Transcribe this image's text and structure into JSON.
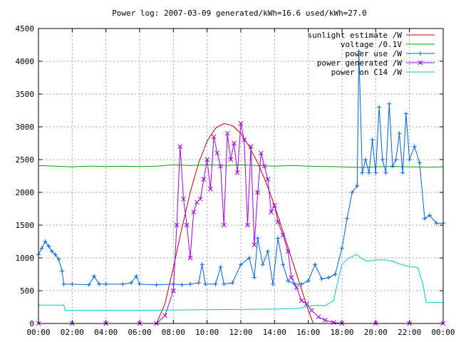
{
  "chart_data": {
    "type": "line",
    "title": "Power log: 2007-03-09 generated/kWh=16.6 used/kWh=27.0",
    "xlabel": "",
    "ylabel": "",
    "x_unit": "hours",
    "xlim": [
      0,
      24
    ],
    "ylim": [
      0,
      4500
    ],
    "grid": true,
    "legend_position": "top-right",
    "x_ticks": [
      {
        "value": 0,
        "label": "00:00"
      },
      {
        "value": 2,
        "label": "02:00"
      },
      {
        "value": 4,
        "label": "04:00"
      },
      {
        "value": 6,
        "label": "06:00"
      },
      {
        "value": 8,
        "label": "08:00"
      },
      {
        "value": 10,
        "label": "10:00"
      },
      {
        "value": 12,
        "label": "12:00"
      },
      {
        "value": 14,
        "label": "14:00"
      },
      {
        "value": 16,
        "label": "16:00"
      },
      {
        "value": 18,
        "label": "18:00"
      },
      {
        "value": 20,
        "label": "20:00"
      },
      {
        "value": 22,
        "label": "22:00"
      },
      {
        "value": 24,
        "label": "00:00"
      }
    ],
    "y_ticks": [
      {
        "value": 0,
        "label": "0"
      },
      {
        "value": 500,
        "label": "500"
      },
      {
        "value": 1000,
        "label": "1000"
      },
      {
        "value": 1500,
        "label": "1500"
      },
      {
        "value": 2000,
        "label": "2000"
      },
      {
        "value": 2500,
        "label": "2500"
      },
      {
        "value": 3000,
        "label": "3000"
      },
      {
        "value": 3500,
        "label": "3500"
      },
      {
        "value": 4000,
        "label": "4000"
      },
      {
        "value": 4500,
        "label": "4500"
      }
    ],
    "series": [
      {
        "name": "sunlight estimate /W",
        "color": "#c00000",
        "style": "line",
        "points": [
          [
            0,
            0
          ],
          [
            6.8,
            0
          ],
          [
            7.0,
            0
          ],
          [
            7.5,
            300
          ],
          [
            8.0,
            850
          ],
          [
            8.5,
            1450
          ],
          [
            9.0,
            2000
          ],
          [
            9.5,
            2450
          ],
          [
            10.0,
            2780
          ],
          [
            10.5,
            2980
          ],
          [
            11.0,
            3050
          ],
          [
            11.5,
            3020
          ],
          [
            12.0,
            2900
          ],
          [
            12.5,
            2700
          ],
          [
            13.0,
            2450
          ],
          [
            13.5,
            2150
          ],
          [
            14.0,
            1800
          ],
          [
            14.5,
            1400
          ],
          [
            15.0,
            1000
          ],
          [
            15.5,
            600
          ],
          [
            16.0,
            200
          ],
          [
            16.3,
            0
          ],
          [
            24,
            0
          ]
        ]
      },
      {
        "name": "voltage /0.1V",
        "color": "#00a000",
        "style": "line",
        "points": [
          [
            0,
            2410
          ],
          [
            1,
            2400
          ],
          [
            2,
            2390
          ],
          [
            3,
            2400
          ],
          [
            4,
            2395
          ],
          [
            5,
            2400
          ],
          [
            6,
            2395
          ],
          [
            7,
            2400
          ],
          [
            8,
            2420
          ],
          [
            9,
            2410
          ],
          [
            10,
            2420
          ],
          [
            11,
            2410
          ],
          [
            12,
            2420
          ],
          [
            13,
            2410
          ],
          [
            14,
            2400
          ],
          [
            15,
            2410
          ],
          [
            16,
            2400
          ],
          [
            17,
            2395
          ],
          [
            18,
            2390
          ],
          [
            19,
            2380
          ],
          [
            20,
            2390
          ],
          [
            21,
            2395
          ],
          [
            22,
            2390
          ],
          [
            23,
            2385
          ],
          [
            24,
            2390
          ]
        ]
      },
      {
        "name": "power use /W",
        "color": "#0060e0",
        "style": "linespoints-plus",
        "points": [
          [
            0,
            1050
          ],
          [
            0.2,
            1150
          ],
          [
            0.4,
            1250
          ],
          [
            0.6,
            1180
          ],
          [
            0.8,
            1100
          ],
          [
            1.0,
            1050
          ],
          [
            1.2,
            980
          ],
          [
            1.4,
            800
          ],
          [
            1.5,
            600
          ],
          [
            2,
            600
          ],
          [
            3,
            590
          ],
          [
            3.3,
            720
          ],
          [
            3.6,
            600
          ],
          [
            4,
            600
          ],
          [
            5,
            600
          ],
          [
            5.5,
            620
          ],
          [
            5.8,
            720
          ],
          [
            6.0,
            600
          ],
          [
            7,
            590
          ],
          [
            8,
            600
          ],
          [
            8.5,
            590
          ],
          [
            9,
            600
          ],
          [
            9.5,
            620
          ],
          [
            9.7,
            900
          ],
          [
            9.9,
            600
          ],
          [
            10.5,
            600
          ],
          [
            10.8,
            860
          ],
          [
            11.0,
            600
          ],
          [
            11.5,
            620
          ],
          [
            12.0,
            900
          ],
          [
            12.5,
            1000
          ],
          [
            12.8,
            700
          ],
          [
            13.0,
            1300
          ],
          [
            13.3,
            900
          ],
          [
            13.6,
            1100
          ],
          [
            13.9,
            600
          ],
          [
            14.2,
            1300
          ],
          [
            14.5,
            900
          ],
          [
            14.8,
            650
          ],
          [
            15.2,
            600
          ],
          [
            15.6,
            600
          ],
          [
            16.0,
            650
          ],
          [
            16.4,
            900
          ],
          [
            16.8,
            680
          ],
          [
            17.2,
            700
          ],
          [
            17.6,
            750
          ],
          [
            18.0,
            1150
          ],
          [
            18.3,
            1600
          ],
          [
            18.6,
            2000
          ],
          [
            18.9,
            2100
          ],
          [
            19.0,
            4150
          ],
          [
            19.2,
            2300
          ],
          [
            19.4,
            2500
          ],
          [
            19.6,
            2300
          ],
          [
            19.8,
            2800
          ],
          [
            20.0,
            2300
          ],
          [
            20.2,
            3300
          ],
          [
            20.4,
            2500
          ],
          [
            20.6,
            2300
          ],
          [
            20.8,
            3350
          ],
          [
            21.0,
            2400
          ],
          [
            21.2,
            2500
          ],
          [
            21.4,
            2900
          ],
          [
            21.6,
            2300
          ],
          [
            21.8,
            3200
          ],
          [
            22.0,
            2500
          ],
          [
            22.3,
            2700
          ],
          [
            22.6,
            2450
          ],
          [
            22.9,
            1600
          ],
          [
            23.2,
            1650
          ],
          [
            23.6,
            1530
          ],
          [
            24,
            1530
          ]
        ]
      },
      {
        "name": "power generated /W",
        "color": "#a000e0",
        "style": "linespoints-cross",
        "points": [
          [
            0,
            0
          ],
          [
            2,
            0
          ],
          [
            4,
            0
          ],
          [
            6,
            0
          ],
          [
            7.0,
            0
          ],
          [
            7.5,
            120
          ],
          [
            8.0,
            500
          ],
          [
            8.2,
            1500
          ],
          [
            8.4,
            2700
          ],
          [
            8.6,
            1900
          ],
          [
            8.8,
            1500
          ],
          [
            9.0,
            1000
          ],
          [
            9.2,
            1700
          ],
          [
            9.4,
            1850
          ],
          [
            9.6,
            1900
          ],
          [
            9.8,
            2200
          ],
          [
            10.0,
            2500
          ],
          [
            10.2,
            2050
          ],
          [
            10.4,
            2850
          ],
          [
            10.6,
            2600
          ],
          [
            10.8,
            2400
          ],
          [
            11.0,
            1500
          ],
          [
            11.2,
            2900
          ],
          [
            11.4,
            2500
          ],
          [
            11.6,
            2750
          ],
          [
            11.8,
            2300
          ],
          [
            12.0,
            3050
          ],
          [
            12.2,
            2800
          ],
          [
            12.4,
            1500
          ],
          [
            12.6,
            2700
          ],
          [
            12.8,
            1200
          ],
          [
            13.0,
            2000
          ],
          [
            13.2,
            2600
          ],
          [
            13.4,
            2400
          ],
          [
            13.6,
            2200
          ],
          [
            13.8,
            1700
          ],
          [
            14.0,
            1800
          ],
          [
            14.2,
            1550
          ],
          [
            14.5,
            1350
          ],
          [
            14.8,
            1100
          ],
          [
            15.0,
            700
          ],
          [
            15.3,
            550
          ],
          [
            15.6,
            350
          ],
          [
            15.9,
            300
          ],
          [
            16.2,
            200
          ],
          [
            16.6,
            100
          ],
          [
            17.0,
            50
          ],
          [
            17.5,
            15
          ],
          [
            18,
            0
          ],
          [
            20,
            0
          ],
          [
            22,
            0
          ],
          [
            24,
            0
          ]
        ]
      },
      {
        "name": "power on C14 /W",
        "color": "#00c8c8",
        "style": "line",
        "points": [
          [
            0,
            280
          ],
          [
            1.5,
            280
          ],
          [
            1.6,
            200
          ],
          [
            6,
            200
          ],
          [
            10,
            210
          ],
          [
            14,
            220
          ],
          [
            15.5,
            230
          ],
          [
            15.6,
            240
          ],
          [
            16.5,
            280
          ],
          [
            17.0,
            270
          ],
          [
            17.5,
            350
          ],
          [
            17.8,
            700
          ],
          [
            18.0,
            900
          ],
          [
            18.4,
            1000
          ],
          [
            18.9,
            1050
          ],
          [
            19.1,
            1000
          ],
          [
            19.5,
            950
          ],
          [
            20.0,
            970
          ],
          [
            20.5,
            970
          ],
          [
            21.0,
            950
          ],
          [
            21.5,
            900
          ],
          [
            22.0,
            870
          ],
          [
            22.5,
            850
          ],
          [
            22.8,
            600
          ],
          [
            23.0,
            320
          ],
          [
            24,
            320
          ]
        ]
      }
    ]
  }
}
